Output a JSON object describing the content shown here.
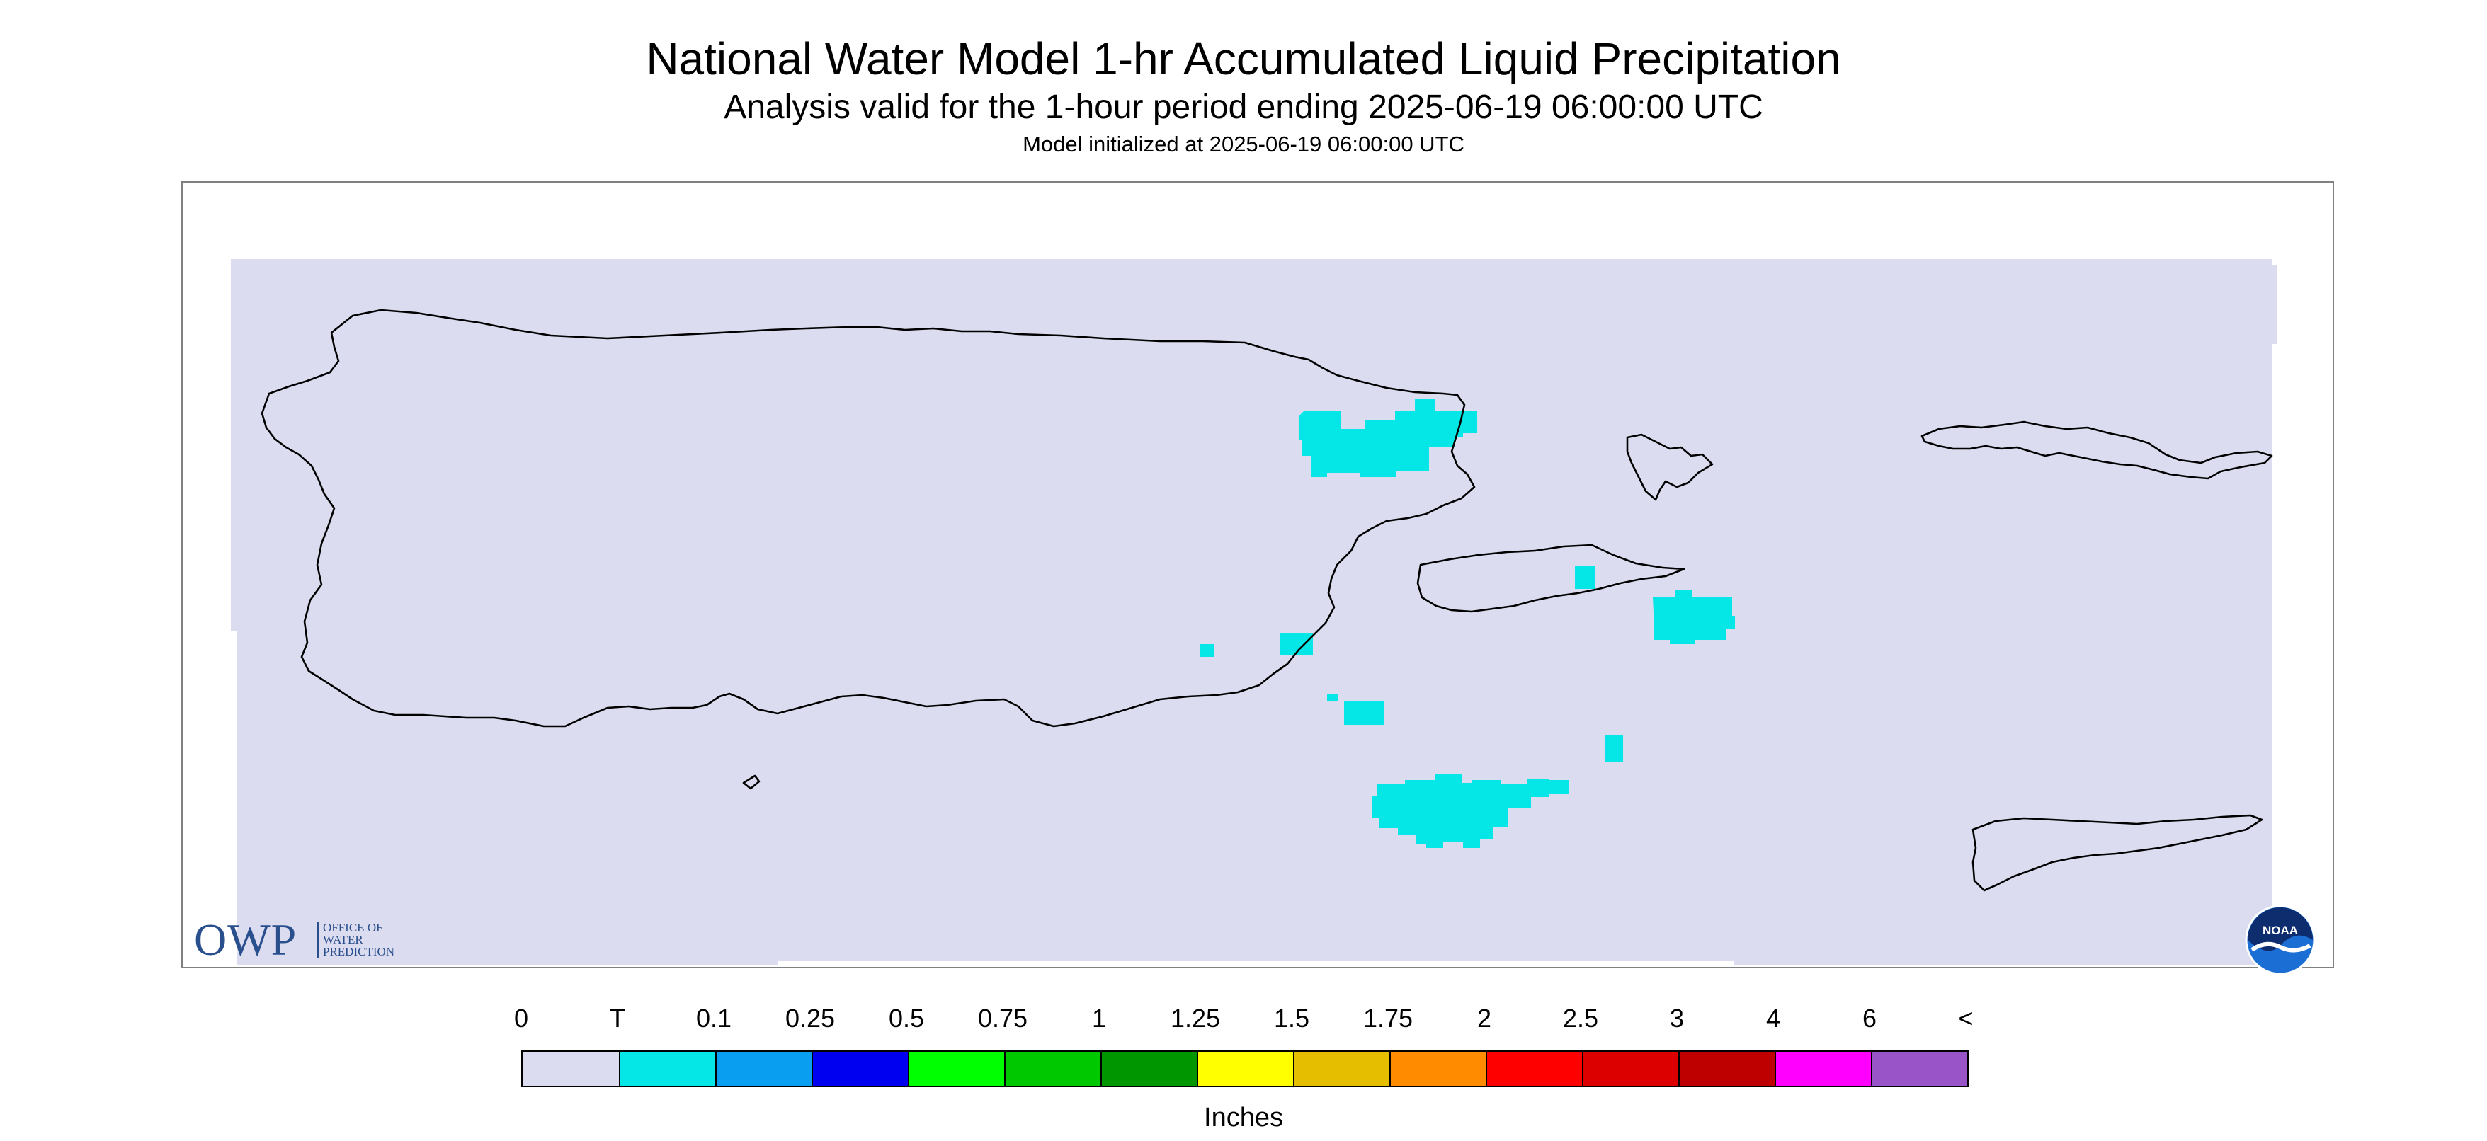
{
  "title": "National Water Model 1-hr Accumulated Liquid Precipitation",
  "subtitle": "Analysis valid for the 1-hour period ending 2025-06-19 06:00:00 UTC",
  "init_line": "Model initialized at 2025-06-19 06:00:00 UTC",
  "map": {
    "background_color": "#ffffff",
    "domain_fill_color": "#dcdcf0",
    "coastline_color": "#000000",
    "precip_color": "#05e6e6",
    "regions": [
      "Puerto Rico",
      "Vieques",
      "Culebra",
      "US Virgin Islands"
    ]
  },
  "logos": {
    "owp": {
      "letters": "OWP",
      "line1": "OFFICE OF",
      "line2": "WATER",
      "line3": "PREDICTION",
      "color": "#2a4f8d",
      "icon": "owp-logo"
    },
    "noaa": {
      "text": "NOAA",
      "icon": "noaa-logo"
    }
  },
  "legend": {
    "units": "Inches",
    "tick_labels": [
      "0",
      "T",
      "0.1",
      "0.25",
      "0.5",
      "0.75",
      "1",
      "1.25",
      "1.5",
      "1.75",
      "2",
      "2.5",
      "3",
      "4",
      "6",
      "<"
    ],
    "colors": [
      "#dcdcf0",
      "#05e6e6",
      "#0a9ef0",
      "#0000f0",
      "#00ff00",
      "#00c800",
      "#009600",
      "#ffff00",
      "#e6be00",
      "#ff8c00",
      "#ff0000",
      "#dc0000",
      "#be0000",
      "#ff00ff",
      "#9955c8"
    ]
  }
}
